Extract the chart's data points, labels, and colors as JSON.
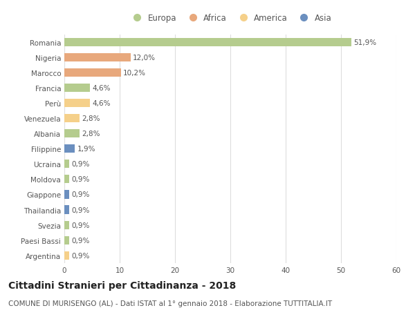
{
  "countries": [
    "Romania",
    "Nigeria",
    "Marocco",
    "Francia",
    "Perù",
    "Venezuela",
    "Albania",
    "Filippine",
    "Ucraina",
    "Moldova",
    "Giappone",
    "Thailandia",
    "Svezia",
    "Paesi Bassi",
    "Argentina"
  ],
  "values": [
    51.9,
    12.0,
    10.2,
    4.6,
    4.6,
    2.8,
    2.8,
    1.9,
    0.9,
    0.9,
    0.9,
    0.9,
    0.9,
    0.9,
    0.9
  ],
  "labels": [
    "51,9%",
    "12,0%",
    "10,2%",
    "4,6%",
    "4,6%",
    "2,8%",
    "2,8%",
    "1,9%",
    "0,9%",
    "0,9%",
    "0,9%",
    "0,9%",
    "0,9%",
    "0,9%",
    "0,9%"
  ],
  "colors": [
    "#b5cc8e",
    "#e8a87c",
    "#e8a87c",
    "#b5cc8e",
    "#f5d08a",
    "#f5d08a",
    "#b5cc8e",
    "#6b8fbf",
    "#b5cc8e",
    "#b5cc8e",
    "#6b8fbf",
    "#6b8fbf",
    "#b5cc8e",
    "#b5cc8e",
    "#f5d08a"
  ],
  "legend_labels": [
    "Europa",
    "Africa",
    "America",
    "Asia"
  ],
  "legend_colors": [
    "#b5cc8e",
    "#e8a87c",
    "#f5d08a",
    "#6b8fbf"
  ],
  "xlim": [
    0,
    60
  ],
  "xticks": [
    0,
    10,
    20,
    30,
    40,
    50,
    60
  ],
  "title": "Cittadini Stranieri per Cittadinanza - 2018",
  "subtitle": "COMUNE DI MURISENGO (AL) - Dati ISTAT al 1° gennaio 2018 - Elaborazione TUTTITALIA.IT",
  "title_fontsize": 10,
  "subtitle_fontsize": 7.5,
  "label_fontsize": 7.5,
  "tick_fontsize": 7.5,
  "legend_fontsize": 8.5,
  "bar_height": 0.55,
  "background_color": "#ffffff",
  "grid_color": "#dddddd"
}
